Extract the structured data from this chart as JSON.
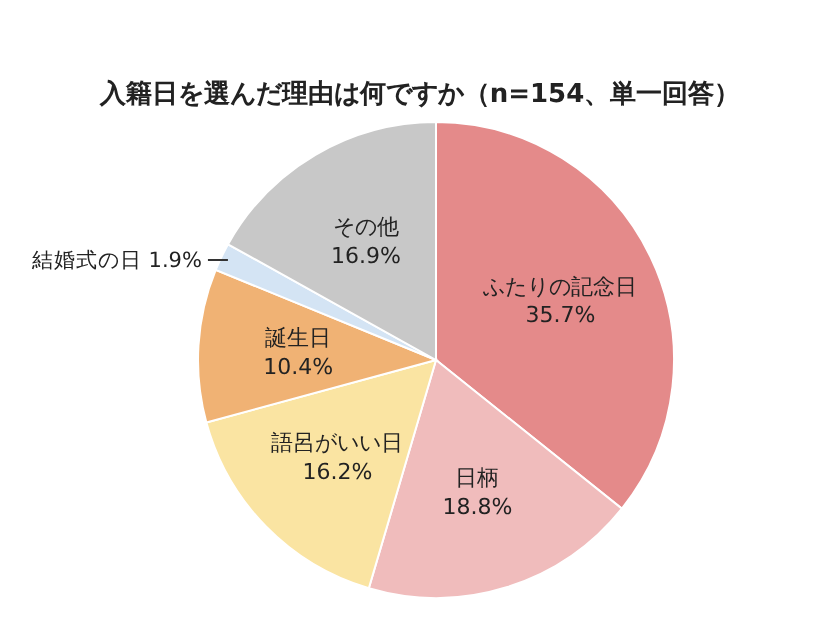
{
  "chart_data": {
    "type": "pie",
    "title": "入籍日を選んだ理由は何ですか（n=154、単一回答）",
    "categories": [
      "ふたりの記念日",
      "日柄",
      "語呂がいい日",
      "誕生日",
      "結婚式の日",
      "その他"
    ],
    "values": [
      35.7,
      18.8,
      16.2,
      10.4,
      1.9,
      16.9
    ],
    "value_labels": [
      "35.7%",
      "18.8%",
      "16.2%",
      "10.4%",
      "1.9%",
      "16.9%"
    ],
    "colors": [
      "#e48a8a",
      "#f0bcbc",
      "#fae4a2",
      "#f0b274",
      "#d4e4f4",
      "#c8c8c8"
    ],
    "legend": false
  }
}
